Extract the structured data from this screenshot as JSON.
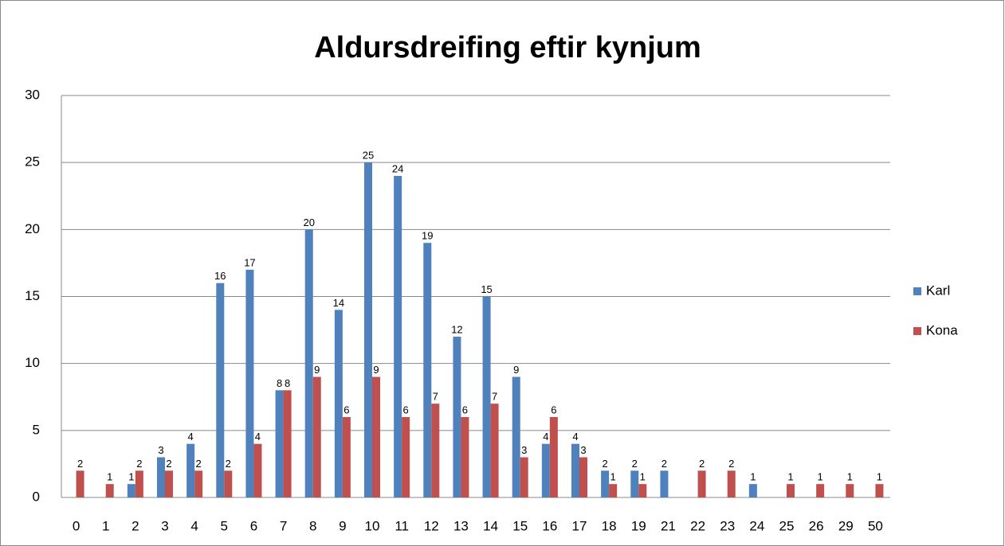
{
  "chart_data": {
    "type": "bar",
    "title": "Aldursdreifing eftir kynjum",
    "categories": [
      "0",
      "1",
      "2",
      "3",
      "4",
      "5",
      "6",
      "7",
      "8",
      "9",
      "10",
      "11",
      "12",
      "13",
      "14",
      "15",
      "16",
      "17",
      "18",
      "19",
      "21",
      "22",
      "23",
      "24",
      "25",
      "26",
      "29",
      "50"
    ],
    "series": [
      {
        "name": "Karl",
        "color": "#4f81bd",
        "values": [
          null,
          null,
          1,
          3,
          4,
          16,
          17,
          8,
          20,
          14,
          25,
          24,
          19,
          12,
          15,
          9,
          4,
          4,
          2,
          2,
          2,
          null,
          null,
          1,
          null,
          null,
          null,
          null
        ]
      },
      {
        "name": "Kona",
        "color": "#c0504d",
        "values": [
          2,
          1,
          2,
          2,
          2,
          2,
          4,
          8,
          9,
          6,
          9,
          6,
          7,
          6,
          7,
          3,
          6,
          3,
          1,
          1,
          null,
          2,
          2,
          null,
          1,
          1,
          1,
          1
        ]
      }
    ],
    "ylim": [
      0,
      30
    ],
    "yticks": [
      0,
      5,
      10,
      15,
      20,
      25,
      30
    ],
    "grid": true,
    "legend": "right"
  }
}
